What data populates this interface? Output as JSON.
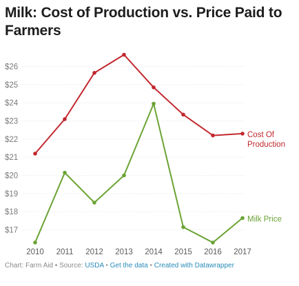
{
  "chart_data": {
    "type": "line",
    "title": "Milk: Cost of Production vs. Price Paid to Farmers",
    "x": [
      "2010",
      "2011",
      "2012",
      "2013",
      "2014",
      "2015",
      "2016",
      "2017"
    ],
    "y_ticks": [
      "$17",
      "$18",
      "$19",
      "$20",
      "$21",
      "$22",
      "$23",
      "$24",
      "$25",
      "$26"
    ],
    "ylim": [
      16.5,
      26.8
    ],
    "grid": true,
    "series": [
      {
        "name": "Cost Of Production",
        "label_lines": [
          "Cost Of",
          "Production"
        ],
        "color": "#c1272d",
        "values": [
          21.2,
          23.1,
          25.65,
          26.65,
          24.85,
          23.35,
          22.2,
          22.3
        ]
      },
      {
        "name": "Milk Price",
        "label_lines": [
          "Milk Price"
        ],
        "color": "#6aa334",
        "values": [
          16.3,
          20.15,
          18.5,
          20.0,
          23.95,
          17.15,
          16.3,
          17.65
        ]
      }
    ]
  },
  "footer": {
    "prefix": "Chart: Farm Aid • Source: ",
    "source_link": "USDA",
    "sep1": " • ",
    "data_link": "Get the data",
    "sep2": " • ",
    "made_link": "Created with Datawrapper"
  }
}
